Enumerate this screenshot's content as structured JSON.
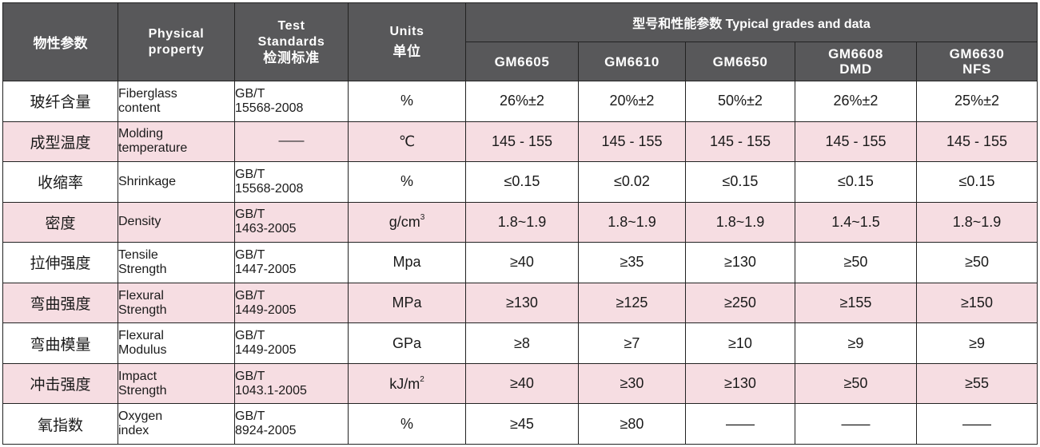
{
  "header": {
    "property_cn": "物性参数",
    "property_en": [
      "Physical",
      "property"
    ],
    "standards": [
      "Test",
      "Standards",
      "检测标准"
    ],
    "units": [
      "Units",
      "单位"
    ],
    "grades_title": "型号和性能参数  Typical grades and data",
    "grades": [
      [
        "GM6605"
      ],
      [
        "GM6610"
      ],
      [
        "GM6650"
      ],
      [
        "GM6608",
        "DMD"
      ],
      [
        "GM6630",
        "NFS"
      ]
    ]
  },
  "rows": [
    {
      "cn": "玻纤含量",
      "en": [
        "Fiberglass",
        "content"
      ],
      "std": [
        "GB/T",
        "15568-2008"
      ],
      "unit": "%",
      "unit_sup": "",
      "values": [
        "26%±2",
        "20%±2",
        "50%±2",
        "26%±2",
        "25%±2"
      ]
    },
    {
      "cn": "成型温度",
      "en": [
        "Molding",
        "temperature"
      ],
      "std": [
        "——"
      ],
      "unit": "℃",
      "unit_sup": "",
      "values": [
        "145 - 155",
        "145 - 155",
        "145 - 155",
        "145 - 155",
        "145 - 155"
      ]
    },
    {
      "cn": "收缩率",
      "en": [
        "Shrinkage"
      ],
      "std": [
        "GB/T",
        "15568-2008"
      ],
      "unit": "%",
      "unit_sup": "",
      "values": [
        "≤0.15",
        "≤0.02",
        "≤0.15",
        "≤0.15",
        "≤0.15"
      ]
    },
    {
      "cn": "密度",
      "en": [
        "Density"
      ],
      "std": [
        "GB/T",
        "1463-2005"
      ],
      "unit": "g/cm",
      "unit_sup": "3",
      "values": [
        "1.8~1.9",
        "1.8~1.9",
        "1.8~1.9",
        "1.4~1.5",
        "1.8~1.9"
      ]
    },
    {
      "cn": "拉伸强度",
      "en": [
        "Tensile",
        "Strength"
      ],
      "std": [
        "GB/T",
        "1447-2005"
      ],
      "unit": "Mpa",
      "unit_sup": "",
      "values": [
        "≥40",
        "≥35",
        "≥130",
        "≥50",
        "≥50"
      ]
    },
    {
      "cn": "弯曲强度",
      "en": [
        "Flexural",
        "Strength"
      ],
      "std": [
        "GB/T",
        "1449-2005"
      ],
      "unit": "MPa",
      "unit_sup": "",
      "values": [
        "≥130",
        "≥125",
        "≥250",
        "≥155",
        "≥150"
      ]
    },
    {
      "cn": "弯曲模量",
      "en": [
        "Flexural",
        "Modulus"
      ],
      "std": [
        "GB/T",
        "1449-2005"
      ],
      "unit": "GPa",
      "unit_sup": "",
      "values": [
        "≥8",
        "≥7",
        "≥10",
        "≥9",
        "≥9"
      ]
    },
    {
      "cn": "冲击强度",
      "en": [
        "Impact",
        "Strength"
      ],
      "std": [
        "GB/T",
        "1043.1-2005"
      ],
      "unit": "kJ/m",
      "unit_sup": "2",
      "values": [
        "≥40",
        "≥30",
        "≥130",
        "≥50",
        "≥55"
      ]
    },
    {
      "cn": "氧指数",
      "en": [
        "Oxygen",
        "index"
      ],
      "std": [
        "GB/T",
        "8924-2005"
      ],
      "unit": "%",
      "unit_sup": "",
      "values": [
        "≥45",
        "≥80",
        "——",
        "——",
        "——"
      ]
    }
  ],
  "colors": {
    "header_bg": "#58585a",
    "header_text": "#ffffff",
    "stripe": "#f6dde2",
    "border": "#222222"
  }
}
